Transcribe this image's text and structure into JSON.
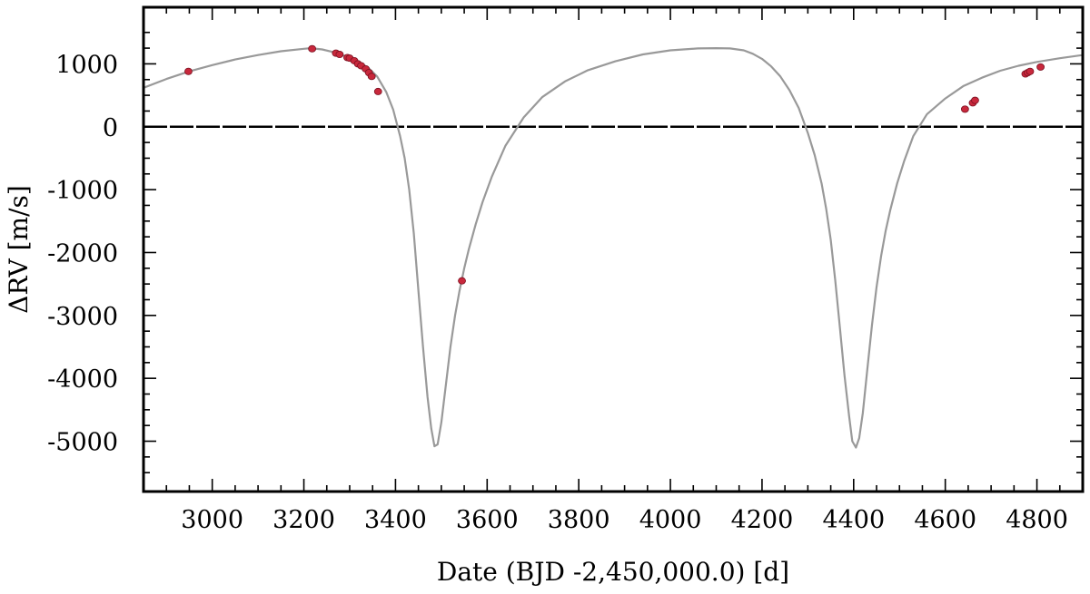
{
  "chart_data": {
    "type": "line",
    "xlabel": "Date (BJD -2,450,000.0) [d]",
    "ylabel": "ΔRV [m/s]",
    "xlim": [
      2850,
      4900
    ],
    "ylim": [
      -5800,
      1900
    ],
    "xticks": [
      3000,
      3200,
      3400,
      3600,
      3800,
      4000,
      4200,
      4400,
      4600,
      4800
    ],
    "xtick_labels": [
      "3000",
      "3200",
      "3400",
      "3600",
      "3800",
      "4000",
      "4200",
      "4400",
      "4600",
      "4800"
    ],
    "yticks": [
      1000,
      0,
      -1000,
      -2000,
      -3000,
      -4000,
      -5000
    ],
    "ytick_labels": [
      "1000",
      "0",
      "-1000",
      "-2000",
      "-3000",
      "-4000",
      "-5000"
    ],
    "grid": false,
    "reference_line": {
      "y": 0,
      "style": "dashed",
      "color": "#000000"
    },
    "series": [
      {
        "kind": "model",
        "color": "#999999",
        "x": [
          2850,
          2900,
          2950,
          3000,
          3050,
          3100,
          3150,
          3200,
          3215,
          3240,
          3260,
          3280,
          3300,
          3320,
          3340,
          3360,
          3380,
          3395,
          3410,
          3420,
          3430,
          3440,
          3450,
          3460,
          3470,
          3478,
          3485,
          3492,
          3500,
          3510,
          3520,
          3530,
          3540,
          3550,
          3560,
          3575,
          3590,
          3610,
          3640,
          3680,
          3720,
          3770,
          3820,
          3880,
          3940,
          4000,
          4060,
          4100,
          4130,
          4160,
          4180,
          4200,
          4220,
          4240,
          4260,
          4280,
          4300,
          4315,
          4330,
          4340,
          4350,
          4360,
          4370,
          4380,
          4390,
          4397,
          4405,
          4412,
          4420,
          4430,
          4440,
          4450,
          4460,
          4470,
          4480,
          4495,
          4510,
          4530,
          4560,
          4600,
          4640,
          4680,
          4720,
          4760,
          4800,
          4850,
          4900
        ],
        "y": [
          620,
          760,
          880,
          980,
          1070,
          1140,
          1200,
          1240,
          1250,
          1230,
          1195,
          1150,
          1100,
          1030,
          940,
          800,
          550,
          270,
          -150,
          -500,
          -1000,
          -1700,
          -2600,
          -3500,
          -4300,
          -4800,
          -5080,
          -5050,
          -4700,
          -4100,
          -3500,
          -3000,
          -2600,
          -2250,
          -1950,
          -1550,
          -1200,
          -800,
          -300,
          150,
          470,
          720,
          900,
          1040,
          1150,
          1215,
          1245,
          1250,
          1245,
          1215,
          1160,
          1080,
          960,
          800,
          580,
          300,
          -100,
          -450,
          -900,
          -1300,
          -1800,
          -2450,
          -3200,
          -3950,
          -4600,
          -5000,
          -5100,
          -4950,
          -4550,
          -3850,
          -3150,
          -2550,
          -2050,
          -1650,
          -1320,
          -900,
          -550,
          -150,
          200,
          450,
          650,
          780,
          890,
          970,
          1030,
          1090,
          1140
        ]
      },
      {
        "kind": "observations",
        "color": "#c8283c",
        "x": [
          2948,
          3218,
          3270,
          3278,
          3295,
          3300,
          3310,
          3318,
          3325,
          3335,
          3342,
          3348,
          3362,
          3545,
          4643,
          4660,
          4665,
          4775,
          4780,
          4785,
          4808
        ],
        "y": [
          880,
          1240,
          1170,
          1150,
          1100,
          1090,
          1050,
          1000,
          970,
          920,
          860,
          800,
          560,
          -2450,
          280,
          380,
          420,
          840,
          860,
          880,
          950
        ]
      }
    ]
  }
}
